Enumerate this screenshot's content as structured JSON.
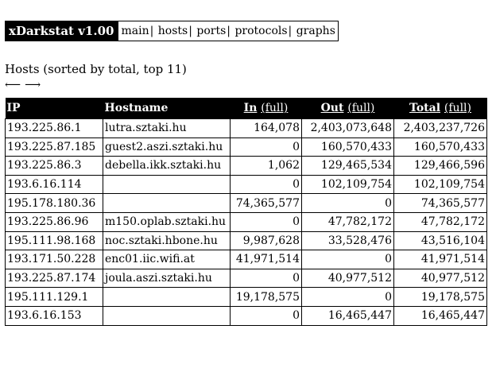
{
  "navbar": {
    "brand": "xDarkstat v1.00",
    "links": [
      "main",
      "hosts",
      "ports",
      "protocols",
      "graphs"
    ]
  },
  "heading": "Hosts (sorted by total, top 11)",
  "nav_arrows": {
    "prev": "⟵",
    "next": "⟶"
  },
  "table": {
    "headers": {
      "ip": "IP",
      "hostname": "Hostname",
      "in": "In",
      "in_full": "(full)",
      "out": "Out",
      "out_full": "(full)",
      "total": "Total",
      "total_full": "(full)"
    },
    "rows": [
      {
        "ip": "193.225.86.1",
        "hostname": "lutra.sztaki.hu",
        "in": "164,078",
        "out": "2,403,073,648",
        "total": "2,403,237,726"
      },
      {
        "ip": "193.225.87.185",
        "hostname": "guest2.aszi.sztaki.hu",
        "in": "0",
        "out": "160,570,433",
        "total": "160,570,433"
      },
      {
        "ip": "193.225.86.3",
        "hostname": "debella.ikk.sztaki.hu",
        "in": "1,062",
        "out": "129,465,534",
        "total": "129,466,596"
      },
      {
        "ip": "193.6.16.114",
        "hostname": "",
        "in": "0",
        "out": "102,109,754",
        "total": "102,109,754"
      },
      {
        "ip": "195.178.180.36",
        "hostname": "",
        "in": "74,365,577",
        "out": "0",
        "total": "74,365,577"
      },
      {
        "ip": "193.225.86.96",
        "hostname": "m150.oplab.sztaki.hu",
        "in": "0",
        "out": "47,782,172",
        "total": "47,782,172"
      },
      {
        "ip": "195.111.98.168",
        "hostname": "noc.sztaki.hbone.hu",
        "in": "9,987,628",
        "out": "33,528,476",
        "total": "43,516,104"
      },
      {
        "ip": "193.171.50.228",
        "hostname": "enc01.iic.wifi.at",
        "in": "41,971,514",
        "out": "0",
        "total": "41,971,514"
      },
      {
        "ip": "193.225.87.174",
        "hostname": "joula.aszi.sztaki.hu",
        "in": "0",
        "out": "40,977,512",
        "total": "40,977,512"
      },
      {
        "ip": "195.111.129.1",
        "hostname": "",
        "in": "19,178,575",
        "out": "0",
        "total": "19,178,575"
      },
      {
        "ip": "193.6.16.153",
        "hostname": "",
        "in": "0",
        "out": "16,465,447",
        "total": "16,465,447"
      }
    ]
  }
}
